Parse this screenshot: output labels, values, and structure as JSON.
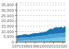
{
  "chart_data": {
    "type": "area",
    "stacked": true,
    "grid": true,
    "x": [
      1970,
      1971,
      1972,
      1973,
      1974,
      1975,
      1976,
      1977,
      1978,
      1979,
      1980,
      1981,
      1982,
      1983,
      1984,
      1985,
      1986,
      1987,
      1988,
      1989,
      1990,
      1991,
      1992,
      1993,
      1994,
      1995,
      1996,
      1997,
      1998,
      1999,
      2000,
      2001,
      2002,
      2003,
      2004,
      2005,
      2006,
      2007,
      2008,
      2009,
      2010,
      2011,
      2012,
      2013,
      2014,
      2015,
      2016,
      2017,
      2018,
      2019,
      2020,
      2021,
      2022,
      2023
    ],
    "xlim": [
      1970,
      2023
    ],
    "xticks": [
      1970,
      1980,
      1990,
      2000,
      2010,
      2020
    ],
    "ylim": [
      0,
      37000
    ],
    "yticks": [
      0,
      {
        "value": 5000,
        "label": "5,000"
      },
      {
        "value": 10000,
        "label": "10,000"
      },
      {
        "value": 15000,
        "label": "15,000"
      },
      {
        "value": 20000,
        "label": "20,000"
      },
      {
        "value": 25000,
        "label": "25,000"
      },
      {
        "value": 30000,
        "label": "30,000"
      },
      {
        "value": 35000,
        "label": "35,000"
      }
    ],
    "series": [
      {
        "color": "#e05a4e",
        "values": [
          210,
          210,
          220,
          230,
          230,
          240,
          250,
          260,
          270,
          280,
          270,
          270,
          270,
          270,
          280,
          290,
          300,
          310,
          320,
          330,
          330,
          330,
          340,
          340,
          360,
          370,
          380,
          390,
          390,
          400,
          420,
          430,
          440,
          480,
          520,
          550,
          570,
          590,
          600,
          580,
          620,
          650,
          660,
          680,
          680,
          680,
          680,
          700,
          720,
          730,
          670,
          720,
          740,
          750
        ]
      },
      {
        "color": "#7ec8e3",
        "values": [
          910,
          940,
          1010,
          1060,
          1060,
          1060,
          1130,
          1170,
          1230,
          1310,
          1340,
          1340,
          1330,
          1360,
          1400,
          1440,
          1490,
          1550,
          1620,
          1710,
          1760,
          1800,
          1810,
          1820,
          1870,
          1930,
          2010,
          2060,
          2100,
          2150,
          2250,
          2290,
          2360,
          2430,
          2550,
          2650,
          2740,
          2820,
          2880,
          2780,
          2980,
          3130,
          3210,
          3260,
          3310,
          3350,
          3440,
          3570,
          3650,
          3760,
          3650,
          3870,
          3980,
          3980
        ]
      },
      {
        "color": "#4da6d9",
        "values": [
          2460,
          2530,
          2660,
          2840,
          2820,
          2720,
          2900,
          2970,
          3020,
          3110,
          3010,
          2890,
          2810,
          2790,
          2820,
          2840,
          2950,
          3000,
          3140,
          3190,
          3160,
          3170,
          3200,
          3190,
          3230,
          3310,
          3320,
          3440,
          3440,
          3460,
          3570,
          3560,
          3560,
          3650,
          3810,
          3900,
          3980,
          4060,
          3970,
          3720,
          3940,
          4010,
          4030,
          4030,
          4010,
          4000,
          3990,
          4100,
          4140,
          4190,
          3690,
          4000,
          4130,
          4130
        ]
      },
      {
        "color": "#1a72b0",
        "values": [
          2490,
          2430,
          2500,
          2570,
          2490,
          2490,
          2660,
          2720,
          2720,
          2820,
          2820,
          2700,
          2640,
          2660,
          2790,
          2940,
          2990,
          3100,
          3250,
          3240,
          3100,
          3240,
          3130,
          3090,
          3130,
          3260,
          3430,
          3370,
          3260,
          3210,
          3360,
          3400,
          3510,
          3900,
          4270,
          4580,
          4880,
          5130,
          5250,
          4960,
          5440,
          5910,
          5950,
          5970,
          5960,
          5760,
          5640,
          5700,
          5720,
          5590,
          5160,
          5660,
          5820,
          5650
        ]
      }
    ]
  }
}
